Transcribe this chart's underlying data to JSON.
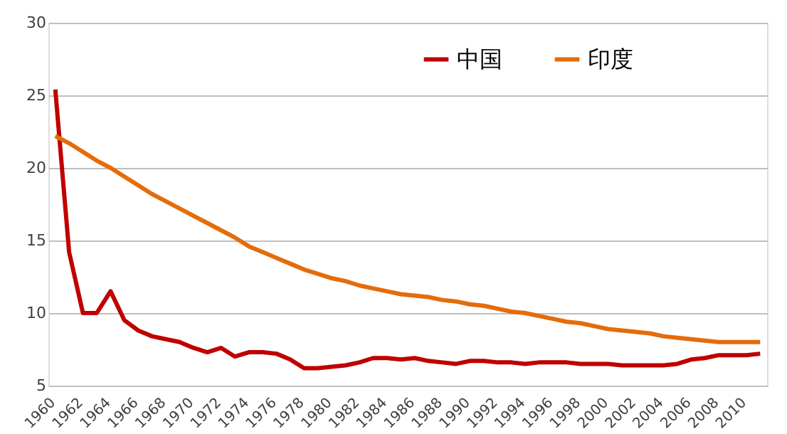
{
  "chart_data": {
    "type": "line",
    "categories": [
      "1960",
      null,
      "1962",
      null,
      "1964",
      null,
      "1966",
      null,
      "1968",
      null,
      "1970",
      null,
      "1972",
      null,
      "1974",
      null,
      "1976",
      null,
      "1978",
      null,
      "1980",
      null,
      "1982",
      null,
      "1984",
      null,
      "1986",
      null,
      "1988",
      null,
      "1990",
      null,
      "1992",
      null,
      "1994",
      null,
      "1996",
      null,
      "1998",
      null,
      "2000",
      null,
      "2002",
      null,
      "2004",
      null,
      "2006",
      null,
      "2008",
      null,
      "2010",
      null
    ],
    "series": [
      {
        "name": "中国",
        "color": "#c00000",
        "values": [
          25.4,
          14.2,
          10.0,
          10.0,
          11.5,
          9.5,
          8.8,
          8.4,
          8.2,
          8.0,
          7.6,
          7.3,
          7.6,
          7.0,
          7.3,
          7.3,
          7.2,
          6.8,
          6.2,
          6.2,
          6.3,
          6.4,
          6.6,
          6.9,
          6.9,
          6.8,
          6.9,
          6.7,
          6.6,
          6.5,
          6.7,
          6.7,
          6.6,
          6.6,
          6.5,
          6.6,
          6.6,
          6.6,
          6.5,
          6.5,
          6.5,
          6.4,
          6.4,
          6.4,
          6.4,
          6.5,
          6.8,
          6.9,
          7.1,
          7.1,
          7.1,
          7.2
        ]
      },
      {
        "name": "印度",
        "color": "#e46c0a",
        "values": [
          22.2,
          21.7,
          21.1,
          20.5,
          20.0,
          19.4,
          18.8,
          18.2,
          17.7,
          17.2,
          16.7,
          16.2,
          15.7,
          15.2,
          14.6,
          14.2,
          13.8,
          13.4,
          13.0,
          12.7,
          12.4,
          12.2,
          11.9,
          11.7,
          11.5,
          11.3,
          11.2,
          11.1,
          10.9,
          10.8,
          10.6,
          10.5,
          10.3,
          10.1,
          10.0,
          9.8,
          9.6,
          9.4,
          9.3,
          9.1,
          8.9,
          8.8,
          8.7,
          8.6,
          8.4,
          8.3,
          8.2,
          8.1,
          8.0,
          8.0,
          8.0,
          8.0
        ]
      }
    ],
    "ylim": [
      5,
      30
    ],
    "yticks": [
      5,
      10,
      15,
      20,
      25,
      30
    ],
    "grid": "y",
    "legend": "top right",
    "marker": "none",
    "line_style": "solid"
  }
}
